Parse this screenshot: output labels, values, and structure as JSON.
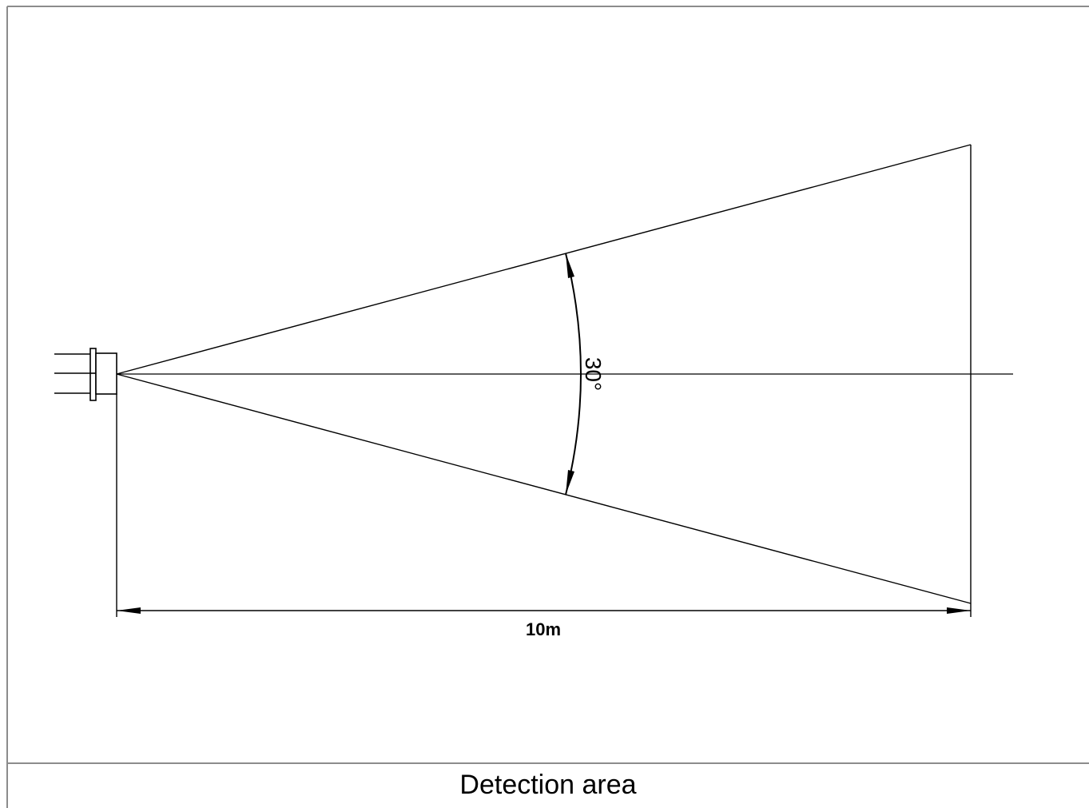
{
  "diagram": {
    "distance_label": "10m",
    "angle_label": "30°",
    "caption": "Detection area"
  },
  "colors": {
    "line": "#000000",
    "frame": "#8c8c8c",
    "background": "#ffffff"
  }
}
